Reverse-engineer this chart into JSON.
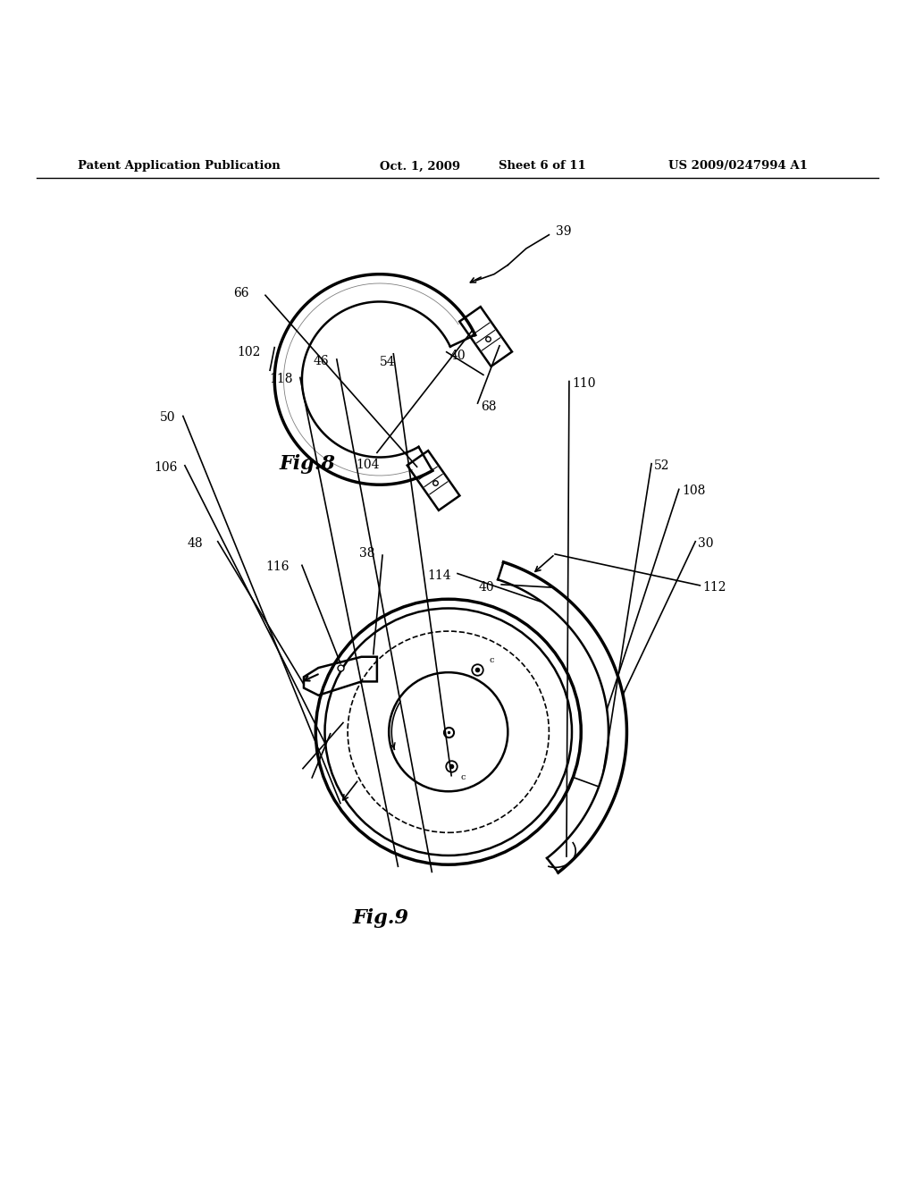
{
  "bg_color": "#ffffff",
  "line_color": "#000000",
  "header_text": "Patent Application Publication",
  "header_date": "Oct. 1, 2009",
  "header_sheet": "Sheet 6 of 11",
  "header_patent": "US 2009/0247994 A1",
  "fig8_label": "Fig.8",
  "fig9_label": "Fig.9"
}
